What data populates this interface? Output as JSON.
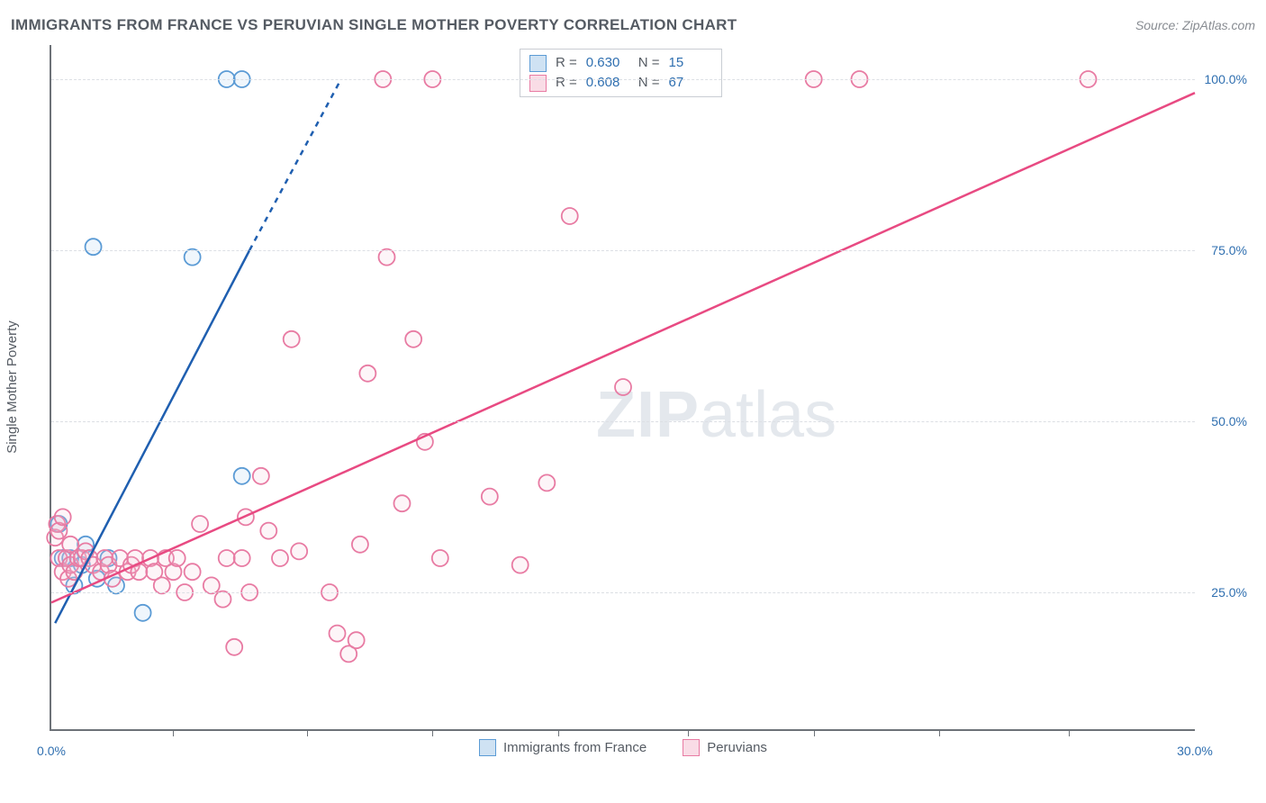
{
  "title": "IMMIGRANTS FROM FRANCE VS PERUVIAN SINGLE MOTHER POVERTY CORRELATION CHART",
  "source": "Source: ZipAtlas.com",
  "ylabel": "Single Mother Poverty",
  "watermark1": "ZIP",
  "watermark2": "atlas",
  "chart": {
    "type": "scatter",
    "xlim": [
      0,
      30
    ],
    "ylim": [
      5,
      105
    ],
    "xticks_major": [
      0,
      30
    ],
    "xticks_minor": [
      3.2,
      6.7,
      10.0,
      13.3,
      16.7,
      20.0,
      23.3,
      26.7
    ],
    "ygrid": [
      25,
      50,
      75,
      100
    ],
    "xtick_labels": {
      "0": "0.0%",
      "30": "30.0%"
    },
    "ytick_labels": {
      "25": "25.0%",
      "50": "50.0%",
      "75": "75.0%",
      "100": "100.0%"
    },
    "background_color": "#ffffff",
    "grid_color": "#dcdfe4",
    "axis_color": "#6d7278",
    "tick_label_color": "#2f6fb0",
    "label_fontsize": 15,
    "tick_fontsize": 14,
    "title_fontsize": 17,
    "title_color": "#555b63",
    "marker_radius": 9,
    "marker_fill_opacity": 0.18,
    "marker_stroke_width": 1.8
  },
  "series": [
    {
      "name": "Immigrants from France",
      "color_stroke": "#5b9bd5",
      "color_fill": "#a8cbec",
      "swatch_border": "#5b9bd5",
      "swatch_fill": "#cfe2f3",
      "line_color": "#1f5fb0",
      "line_width": 2.5,
      "R": "0.630",
      "N": "15",
      "trend": {
        "x1": 0.1,
        "y1": 20.5,
        "x2_solid": 5.2,
        "y2_solid": 75,
        "x2_dash": 7.6,
        "y2_dash": 100
      },
      "points": [
        [
          0.2,
          35
        ],
        [
          0.3,
          30
        ],
        [
          0.5,
          30
        ],
        [
          0.6,
          26
        ],
        [
          0.8,
          29
        ],
        [
          0.9,
          32
        ],
        [
          1.2,
          27
        ],
        [
          1.5,
          30
        ],
        [
          1.7,
          26
        ],
        [
          2.4,
          22
        ],
        [
          1.1,
          75.5
        ],
        [
          5.0,
          42
        ],
        [
          3.7,
          74
        ],
        [
          4.6,
          100
        ],
        [
          5.0,
          100
        ]
      ]
    },
    {
      "name": "Peruvians",
      "color_stroke": "#e87ba3",
      "color_fill": "#f6c7d8",
      "swatch_border": "#e87ba3",
      "swatch_fill": "#f9dce6",
      "line_color": "#e84a82",
      "line_width": 2.5,
      "R": "0.608",
      "N": "67",
      "trend": {
        "x1": 0,
        "y1": 23.5,
        "x2_solid": 30,
        "y2_solid": 98,
        "x2_dash": 30,
        "y2_dash": 98
      },
      "points": [
        [
          0.1,
          33
        ],
        [
          0.15,
          35
        ],
        [
          0.2,
          34
        ],
        [
          0.2,
          30
        ],
        [
          0.3,
          36
        ],
        [
          0.3,
          28
        ],
        [
          0.4,
          30
        ],
        [
          0.45,
          27
        ],
        [
          0.5,
          32
        ],
        [
          0.5,
          29
        ],
        [
          0.6,
          28
        ],
        [
          0.7,
          30
        ],
        [
          0.8,
          30
        ],
        [
          0.9,
          31
        ],
        [
          1.0,
          30
        ],
        [
          1.1,
          29
        ],
        [
          1.3,
          28
        ],
        [
          1.4,
          30
        ],
        [
          1.5,
          29
        ],
        [
          1.6,
          27
        ],
        [
          1.8,
          30
        ],
        [
          2.0,
          28
        ],
        [
          2.1,
          29
        ],
        [
          2.2,
          30
        ],
        [
          2.3,
          28
        ],
        [
          2.6,
          30
        ],
        [
          2.7,
          28
        ],
        [
          2.9,
          26
        ],
        [
          3.0,
          30
        ],
        [
          3.2,
          28
        ],
        [
          3.3,
          30
        ],
        [
          3.5,
          25
        ],
        [
          3.7,
          28
        ],
        [
          3.9,
          35
        ],
        [
          4.2,
          26
        ],
        [
          4.5,
          24
        ],
        [
          4.6,
          30
        ],
        [
          4.8,
          17
        ],
        [
          5.0,
          30
        ],
        [
          5.1,
          36
        ],
        [
          5.2,
          25
        ],
        [
          5.5,
          42
        ],
        [
          5.7,
          34
        ],
        [
          6.0,
          30
        ],
        [
          6.3,
          62
        ],
        [
          6.5,
          31
        ],
        [
          7.3,
          25
        ],
        [
          7.5,
          19
        ],
        [
          7.8,
          16
        ],
        [
          8.0,
          18
        ],
        [
          8.1,
          32
        ],
        [
          8.3,
          57
        ],
        [
          8.7,
          100
        ],
        [
          8.8,
          74
        ],
        [
          9.2,
          38
        ],
        [
          9.5,
          62
        ],
        [
          9.8,
          47
        ],
        [
          10.0,
          100
        ],
        [
          10.2,
          30
        ],
        [
          11.5,
          39
        ],
        [
          12.3,
          29
        ],
        [
          13.0,
          41
        ],
        [
          13.6,
          80
        ],
        [
          15.0,
          55
        ],
        [
          20.0,
          100
        ],
        [
          21.2,
          100
        ],
        [
          27.2,
          100
        ]
      ]
    }
  ],
  "legend_bottom": [
    {
      "label": "Immigrants from France",
      "border": "#5b9bd5",
      "fill": "#cfe2f3"
    },
    {
      "label": "Peruvians",
      "border": "#e87ba3",
      "fill": "#f9dce6"
    }
  ]
}
